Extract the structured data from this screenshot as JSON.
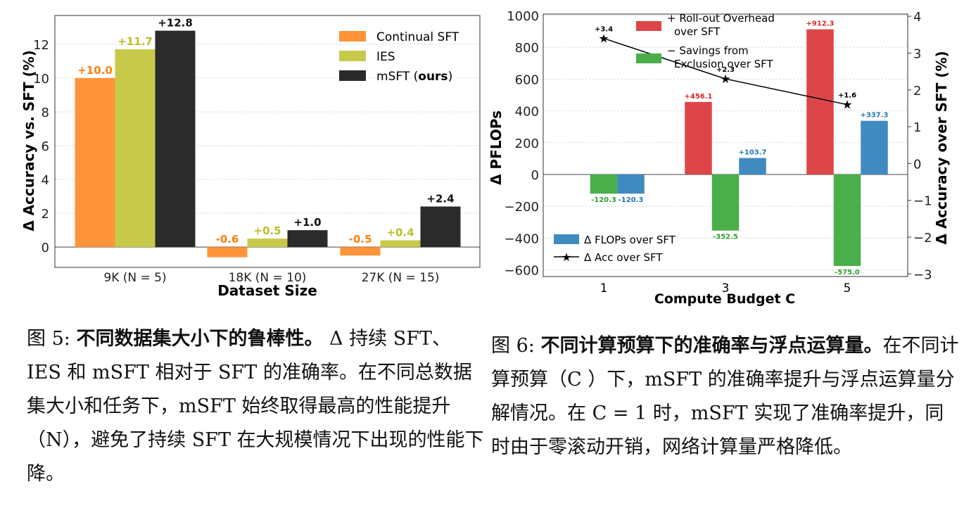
{
  "chart_data": [
    {
      "type": "bar",
      "title": "",
      "xlabel": "Dataset Size",
      "ylabel": "Δ Accuracy vs. SFT (%)",
      "ylim": [
        -1.2,
        13.7
      ],
      "yticks": [
        0,
        2,
        4,
        6,
        8,
        10,
        12
      ],
      "grid": true,
      "legend_position": "top-right",
      "categories": [
        "9K (N = 5)",
        "18K (N = 10)",
        "27K (N = 15)"
      ],
      "series": [
        {
          "name": "Continual SFT",
          "color": "#ff9438",
          "label_color": "#ff7f0e",
          "values": [
            10.0,
            -0.6,
            -0.5
          ],
          "labels": [
            "+10.0",
            "-0.6",
            "-0.5"
          ]
        },
        {
          "name": "IES",
          "color": "#c7c94a",
          "label_color": "#bcbd22",
          "values": [
            11.7,
            0.5,
            0.4
          ],
          "labels": [
            "+11.7",
            "+0.5",
            "+0.4"
          ]
        },
        {
          "name": "mSFT (ours)",
          "name_plain": "mSFT (",
          "name_bold": "ours",
          "name_end": ")",
          "color": "#2b2b2b",
          "label_color": "#111111",
          "values": [
            12.8,
            1.0,
            2.4
          ],
          "labels": [
            "+12.8",
            "+1.0",
            "+2.4"
          ]
        }
      ]
    },
    {
      "type": "bar",
      "title": "",
      "xlabel": "Compute Budget  C",
      "ylabel": "Δ PFLOPs",
      "y2label": "Δ Accuracy over SFT (%)",
      "ylim": [
        -641,
        1008
      ],
      "y2lim": [
        -3.07,
        4.06
      ],
      "yticks": [
        -600,
        -400,
        -200,
        0,
        200,
        400,
        600,
        800,
        1000
      ],
      "y2ticks": [
        -3,
        -2,
        -1,
        0,
        1,
        2,
        3,
        4
      ],
      "grid": true,
      "categories": [
        "1",
        "3",
        "5"
      ],
      "series": [
        {
          "name": "+ Roll-out Overhead over SFT",
          "legend_lines": [
            "+ Roll-out Overhead",
            "over SFT"
          ],
          "color": "#dc4649",
          "label_color": "#d62728",
          "values": [
            0,
            456.1,
            912.3
          ],
          "labels": [
            "",
            "+456.1",
            "+912.3"
          ]
        },
        {
          "name": "− Savings from Exclusion over SFT",
          "legend_lines": [
            "− Savings from",
            "Exclusion over SFT"
          ],
          "color": "#4aae4a",
          "label_color": "#2ca02c",
          "values": [
            -120.3,
            -352.5,
            -575.0
          ],
          "labels": [
            "-120.3",
            "-352.5",
            "-575.0"
          ]
        },
        {
          "name": "Δ FLOPs over SFT",
          "color": "#3f8bc0",
          "label_color": "#1f77b4",
          "values": [
            -120.3,
            103.7,
            337.3
          ],
          "labels": [
            "-120.3",
            "+103.7",
            "+337.3"
          ]
        },
        {
          "name": "Δ Acc over SFT",
          "type": "line",
          "axis": "right",
          "color": "#000000",
          "values": [
            3.4,
            2.3,
            1.6
          ],
          "labels": [
            "+3.4",
            "+2.3",
            "+1.6"
          ]
        }
      ]
    }
  ],
  "captions": {
    "fig5": {
      "prefix": "图 5: ",
      "title": "不同数据集大小下的鲁棒性。",
      "body": " Δ 持续 SFT、IES 和 mSFT 相对于 SFT 的准确率。在不同总数据集大小和任务下，mSFT 始终取得最高的性能提升（N），避免了持续 SFT 在大规模情况下出现的性能下降。"
    },
    "fig6": {
      "prefix": "图 6: ",
      "title": "不同计算预算下的准确率与浮点运算量。",
      "body": "在不同计算预算（C ）下，mSFT 的准确率提升与浮点运算量分解情况。在 C = 1 时，mSFT 实现了准确率提升，同时由于零滚动开销，网络计算量严格降低。"
    }
  }
}
